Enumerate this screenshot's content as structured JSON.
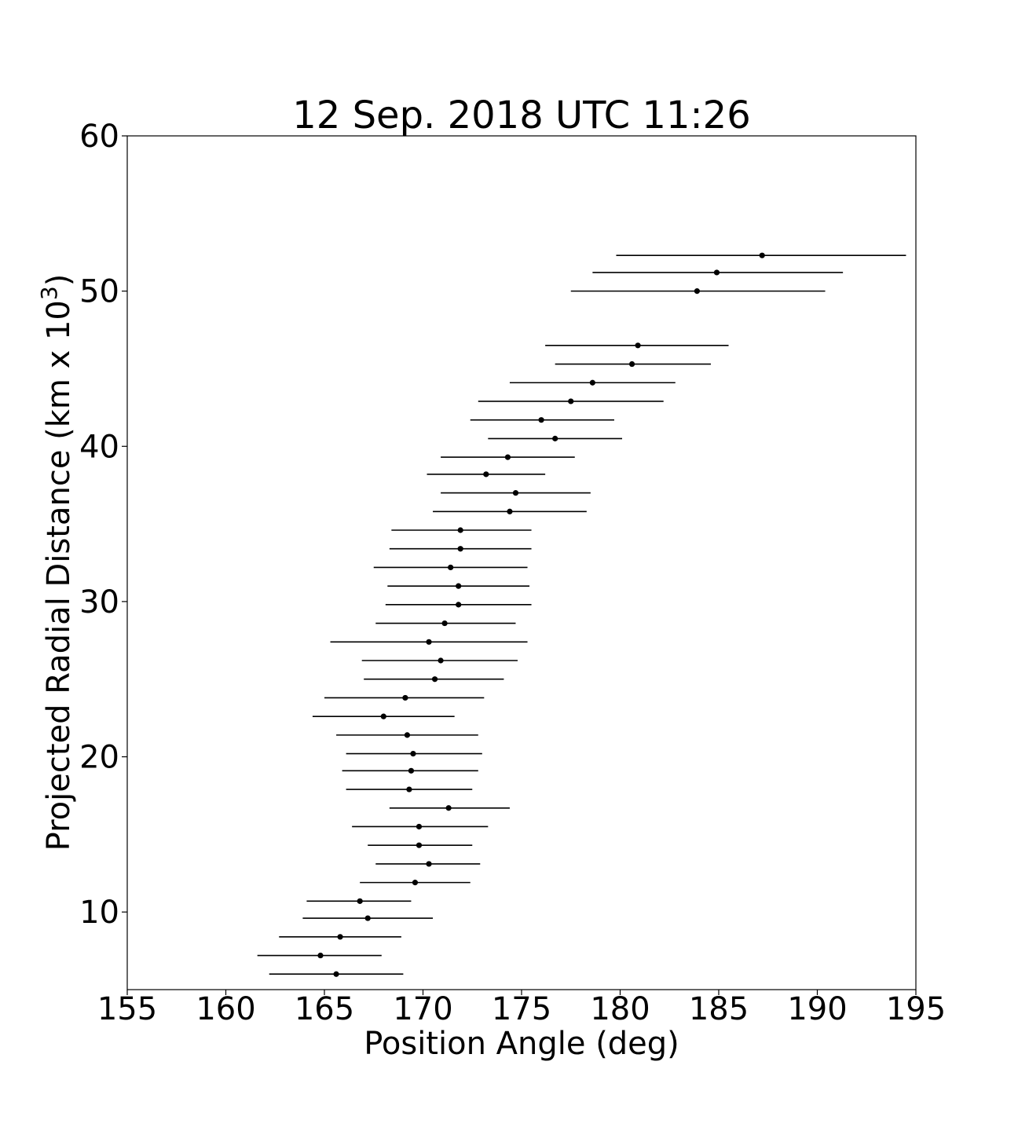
{
  "chart_data": {
    "type": "scatter",
    "title": "12 Sep. 2018 UTC 11:26",
    "xlabel": "Position Angle (deg)",
    "ylabel": "Projected Radial Distance (km x 10",
    "ylabel_exponent": "3",
    "ylabel_close": ")",
    "xlim": [
      155,
      195
    ],
    "ylim": [
      5,
      60
    ],
    "xticks": [
      155,
      160,
      165,
      170,
      175,
      180,
      185,
      190,
      195
    ],
    "yticks": [
      10,
      20,
      30,
      40,
      50,
      60
    ],
    "grid": false,
    "legend": "none",
    "marker_color": "#000000",
    "errorbar_color": "#000000",
    "points": [
      {
        "x": 165.6,
        "y": 6.0,
        "xmin": 162.2,
        "xmax": 169.0
      },
      {
        "x": 164.8,
        "y": 7.2,
        "xmin": 161.6,
        "xmax": 167.9
      },
      {
        "x": 165.8,
        "y": 8.4,
        "xmin": 162.7,
        "xmax": 168.9
      },
      {
        "x": 167.2,
        "y": 9.6,
        "xmin": 163.9,
        "xmax": 170.5
      },
      {
        "x": 166.8,
        "y": 10.7,
        "xmin": 164.1,
        "xmax": 169.4
      },
      {
        "x": 169.6,
        "y": 11.9,
        "xmin": 166.8,
        "xmax": 172.4
      },
      {
        "x": 170.3,
        "y": 13.1,
        "xmin": 167.6,
        "xmax": 172.9
      },
      {
        "x": 169.8,
        "y": 14.3,
        "xmin": 167.2,
        "xmax": 172.5
      },
      {
        "x": 169.8,
        "y": 15.5,
        "xmin": 166.4,
        "xmax": 173.3
      },
      {
        "x": 171.3,
        "y": 16.7,
        "xmin": 168.3,
        "xmax": 174.4
      },
      {
        "x": 169.3,
        "y": 17.9,
        "xmin": 166.1,
        "xmax": 172.5
      },
      {
        "x": 169.4,
        "y": 19.1,
        "xmin": 165.9,
        "xmax": 172.8
      },
      {
        "x": 169.5,
        "y": 20.2,
        "xmin": 166.1,
        "xmax": 173.0
      },
      {
        "x": 169.2,
        "y": 21.4,
        "xmin": 165.6,
        "xmax": 172.8
      },
      {
        "x": 168.0,
        "y": 22.6,
        "xmin": 164.4,
        "xmax": 171.6
      },
      {
        "x": 169.1,
        "y": 23.8,
        "xmin": 165.0,
        "xmax": 173.1
      },
      {
        "x": 170.6,
        "y": 25.0,
        "xmin": 167.0,
        "xmax": 174.1
      },
      {
        "x": 170.9,
        "y": 26.2,
        "xmin": 166.9,
        "xmax": 174.8
      },
      {
        "x": 170.3,
        "y": 27.4,
        "xmin": 165.3,
        "xmax": 175.3
      },
      {
        "x": 171.1,
        "y": 28.6,
        "xmin": 167.6,
        "xmax": 174.7
      },
      {
        "x": 171.8,
        "y": 29.8,
        "xmin": 168.1,
        "xmax": 175.5
      },
      {
        "x": 171.8,
        "y": 31.0,
        "xmin": 168.2,
        "xmax": 175.4
      },
      {
        "x": 171.4,
        "y": 32.2,
        "xmin": 167.5,
        "xmax": 175.3
      },
      {
        "x": 171.9,
        "y": 33.4,
        "xmin": 168.3,
        "xmax": 175.5
      },
      {
        "x": 171.9,
        "y": 34.6,
        "xmin": 168.4,
        "xmax": 175.5
      },
      {
        "x": 174.4,
        "y": 35.8,
        "xmin": 170.5,
        "xmax": 178.3
      },
      {
        "x": 174.7,
        "y": 37.0,
        "xmin": 170.9,
        "xmax": 178.5
      },
      {
        "x": 173.2,
        "y": 38.2,
        "xmin": 170.2,
        "xmax": 176.2
      },
      {
        "x": 174.3,
        "y": 39.3,
        "xmin": 170.9,
        "xmax": 177.7
      },
      {
        "x": 176.7,
        "y": 40.5,
        "xmin": 173.3,
        "xmax": 180.1
      },
      {
        "x": 176.0,
        "y": 41.7,
        "xmin": 172.4,
        "xmax": 179.7
      },
      {
        "x": 177.5,
        "y": 42.9,
        "xmin": 172.8,
        "xmax": 182.2
      },
      {
        "x": 178.6,
        "y": 44.1,
        "xmin": 174.4,
        "xmax": 182.8
      },
      {
        "x": 180.6,
        "y": 45.3,
        "xmin": 176.7,
        "xmax": 184.6
      },
      {
        "x": 180.9,
        "y": 46.5,
        "xmin": 176.2,
        "xmax": 185.5
      },
      {
        "x": 183.9,
        "y": 50.0,
        "xmin": 177.5,
        "xmax": 190.4
      },
      {
        "x": 184.9,
        "y": 51.2,
        "xmin": 178.6,
        "xmax": 191.3
      },
      {
        "x": 187.2,
        "y": 52.3,
        "xmin": 179.8,
        "xmax": 194.5
      }
    ]
  }
}
